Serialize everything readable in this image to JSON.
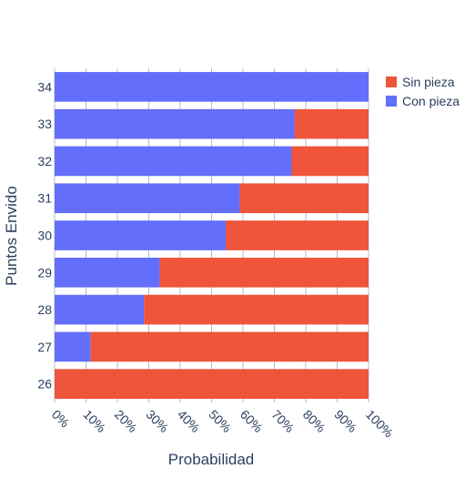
{
  "chart_data": {
    "type": "bar",
    "orientation": "horizontal",
    "barmode": "stack",
    "categories": [
      "26",
      "27",
      "28",
      "29",
      "30",
      "31",
      "32",
      "33",
      "34"
    ],
    "series": [
      {
        "name": "Con pieza",
        "color": "#636efa",
        "values": [
          0,
          11.5,
          28.5,
          33.5,
          54.5,
          59,
          75.5,
          76.5,
          100
        ]
      },
      {
        "name": "Sin pieza",
        "color": "#ef553b",
        "values": [
          100,
          88.5,
          71.5,
          66.5,
          45.5,
          41,
          24.5,
          23.5,
          0
        ]
      }
    ],
    "xlabel": "Probabilidad",
    "ylabel": "Puntos Envido",
    "xlim": [
      0,
      100
    ],
    "x_tick_labels": [
      "0%",
      "10%",
      "20%",
      "30%",
      "40%",
      "50%",
      "60%",
      "70%",
      "80%",
      "90%",
      "100%"
    ],
    "legend": {
      "placement": "top-right",
      "entries": [
        {
          "name": "Sin pieza",
          "color": "#ef553b"
        },
        {
          "name": "Con pieza",
          "color": "#636efa"
        }
      ]
    },
    "grid": true
  }
}
